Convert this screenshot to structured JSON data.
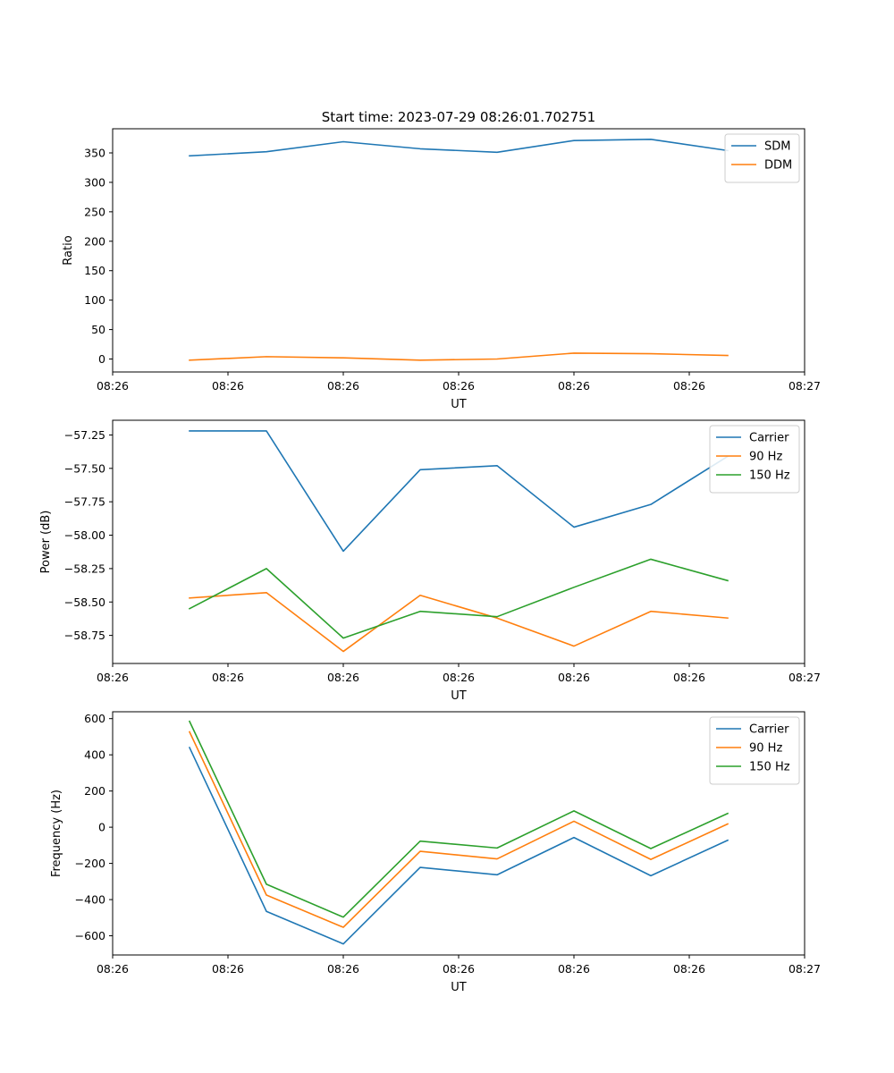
{
  "figure_title": "Start time: 2023-07-29 08:26:01.702751",
  "colors": {
    "c0": "#1f77b4",
    "c1": "#ff7f0e",
    "c2": "#2ca02c"
  },
  "chart_data": [
    {
      "type": "line",
      "title": "Start time: 2023-07-29 08:26:01.702751",
      "xlabel": "UT",
      "ylabel": "Ratio",
      "xlim": [
        0,
        9
      ],
      "x": [
        1,
        2,
        3,
        4,
        5,
        6,
        7,
        8
      ],
      "xticks": [
        0,
        1.5,
        3,
        4.5,
        6,
        7.5,
        9
      ],
      "xtick_labels": [
        "08:26",
        "08:26",
        "08:26",
        "08:26",
        "08:26",
        "08:26",
        "08:27"
      ],
      "ylim": [
        -22,
        391
      ],
      "yticks": [
        0,
        50,
        100,
        150,
        200,
        250,
        300,
        350
      ],
      "ytick_labels": [
        "0",
        "50",
        "100",
        "150",
        "200",
        "250",
        "300",
        "350"
      ],
      "legend_position": "top-right",
      "series": [
        {
          "name": "SDM",
          "color": "#1f77b4",
          "values": [
            345,
            352,
            369,
            357,
            351,
            371,
            373,
            354
          ]
        },
        {
          "name": "DDM",
          "color": "#ff7f0e",
          "values": [
            -2,
            4,
            2,
            -2,
            0,
            10,
            9,
            6
          ]
        }
      ]
    },
    {
      "type": "line",
      "title": "",
      "xlabel": "UT",
      "ylabel": "Power (dB)",
      "xlim": [
        0,
        9
      ],
      "x": [
        1,
        2,
        3,
        4,
        5,
        6,
        7,
        8
      ],
      "xticks": [
        0,
        1.5,
        3,
        4.5,
        6,
        7.5,
        9
      ],
      "xtick_labels": [
        "08:26",
        "08:26",
        "08:26",
        "08:26",
        "08:26",
        "08:26",
        "08:27"
      ],
      "ylim": [
        -58.96,
        -57.14
      ],
      "yticks": [
        -57.25,
        -57.5,
        -57.75,
        -58.0,
        -58.25,
        -58.5,
        -58.75
      ],
      "ytick_labels": [
        "−57.25",
        "−57.50",
        "−57.75",
        "−58.00",
        "−58.25",
        "−58.50",
        "−58.75"
      ],
      "legend_position": "top-right",
      "series": [
        {
          "name": "Carrier",
          "color": "#1f77b4",
          "values": [
            -57.22,
            -57.22,
            -58.12,
            -57.51,
            -57.48,
            -57.94,
            -57.77,
            -57.41
          ]
        },
        {
          "name": "90 Hz",
          "color": "#ff7f0e",
          "values": [
            -58.47,
            -58.43,
            -58.87,
            -58.45,
            -58.62,
            -58.83,
            -58.57,
            -58.62
          ]
        },
        {
          "name": "150 Hz",
          "color": "#2ca02c",
          "values": [
            -58.55,
            -58.25,
            -58.77,
            -58.57,
            -58.61,
            -58.39,
            -58.18,
            -58.34
          ]
        }
      ]
    },
    {
      "type": "line",
      "title": "",
      "xlabel": "UT",
      "ylabel": "Frequency (Hz)",
      "xlim": [
        0,
        9
      ],
      "x": [
        1,
        2,
        3,
        4,
        5,
        6,
        7,
        8
      ],
      "xticks": [
        0,
        1.5,
        3,
        4.5,
        6,
        7.5,
        9
      ],
      "xtick_labels": [
        "08:26",
        "08:26",
        "08:26",
        "08:26",
        "08:26",
        "08:26",
        "08:27"
      ],
      "ylim": [
        -706,
        638
      ],
      "yticks": [
        600,
        400,
        200,
        0,
        -200,
        -400,
        -600
      ],
      "ytick_labels": [
        "600",
        "400",
        "200",
        "0",
        "−200",
        "−400",
        "−600"
      ],
      "legend_position": "top-right",
      "series": [
        {
          "name": "Carrier",
          "color": "#1f77b4",
          "values": [
            440,
            -465,
            -645,
            -222,
            -263,
            -57,
            -268,
            -72
          ]
        },
        {
          "name": "90 Hz",
          "color": "#ff7f0e",
          "values": [
            527,
            -375,
            -553,
            -133,
            -175,
            33,
            -178,
            18
          ]
        },
        {
          "name": "150 Hz",
          "color": "#2ca02c",
          "values": [
            585,
            -315,
            -497,
            -77,
            -115,
            90,
            -118,
            76
          ]
        }
      ]
    }
  ]
}
